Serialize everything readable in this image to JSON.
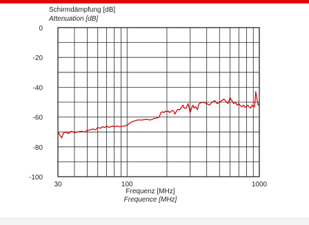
{
  "colors": {
    "accent": "#e10600",
    "curve": "#d40000",
    "grid": "#222222"
  },
  "chart_data": {
    "type": "line",
    "ylabel": "Schirmdämpfung [dB]",
    "ylabel_en": "Attenuation [dB]",
    "xlabel": "Frequenz [MHz]",
    "xlabel_en": "Frequence [MHz]",
    "x_scale": "log",
    "xlim": [
      30,
      1000
    ],
    "ylim": [
      -100,
      0
    ],
    "grid": true,
    "x_ticks": [
      "30",
      "100",
      "1000"
    ],
    "x_tick_values": [
      30,
      100,
      1000
    ],
    "y_ticks": [
      "0",
      "-20",
      "-40",
      "-60",
      "-80",
      "-100"
    ],
    "y_tick_values": [
      0,
      -20,
      -40,
      -60,
      -80,
      -100
    ],
    "x_gridlines": [
      30,
      40,
      50,
      60,
      70,
      80,
      90,
      100,
      200,
      300,
      400,
      500,
      600,
      700,
      800,
      900,
      1000
    ],
    "y_gridlines": [
      0,
      -10,
      -20,
      -30,
      -40,
      -50,
      -60,
      -70,
      -80,
      -90,
      -100
    ],
    "series": [
      {
        "x": [
          30,
          31,
          32,
          33,
          34,
          36,
          38,
          40,
          42,
          45,
          48,
          50,
          53,
          55,
          58,
          60,
          63,
          65,
          68,
          70,
          73,
          75,
          78,
          80,
          84,
          88,
          92,
          95,
          100,
          105,
          110,
          115,
          120,
          130,
          140,
          150,
          160,
          170,
          175,
          180,
          185,
          190,
          195,
          200,
          205,
          210,
          220,
          225,
          230,
          240,
          250,
          260,
          265,
          270,
          280,
          290,
          300,
          310,
          315,
          320,
          330,
          340,
          350,
          370,
          390,
          400,
          420,
          440,
          460,
          480,
          500,
          520,
          540,
          560,
          580,
          600,
          620,
          640,
          660,
          680,
          700,
          720,
          740,
          760,
          780,
          800,
          820,
          840,
          860,
          880,
          900,
          920,
          940,
          960,
          980,
          1000
        ],
        "y": [
          -70,
          -72,
          -74,
          -71,
          -70,
          -71,
          -69.5,
          -70.5,
          -70,
          -69.5,
          -70,
          -69,
          -68.5,
          -68,
          -68.5,
          -67,
          -67.5,
          -66.5,
          -67,
          -66,
          -67,
          -66.5,
          -66,
          -66.5,
          -66,
          -66.5,
          -66.2,
          -66,
          -65.5,
          -64,
          -63,
          -62.5,
          -62,
          -62,
          -61.5,
          -62,
          -61,
          -60.5,
          -60,
          -57,
          -56.5,
          -57,
          -56,
          -56.5,
          -56,
          -57,
          -55.5,
          -56,
          -58,
          -55,
          -55,
          -53,
          -52,
          -54,
          -54,
          -51,
          -57,
          -53,
          -52,
          -54,
          -53,
          -55,
          -51,
          -50,
          -50.5,
          -51,
          -52,
          -50,
          -49,
          -51,
          -50,
          -49,
          -48,
          -49.5,
          -51,
          -47,
          -49,
          -51,
          -50,
          -52,
          -51,
          -52.5,
          -53,
          -52,
          -53.5,
          -53,
          -52,
          -53.5,
          -54,
          -52,
          -53,
          -53,
          -43,
          -48,
          -52,
          -51
        ]
      }
    ]
  }
}
